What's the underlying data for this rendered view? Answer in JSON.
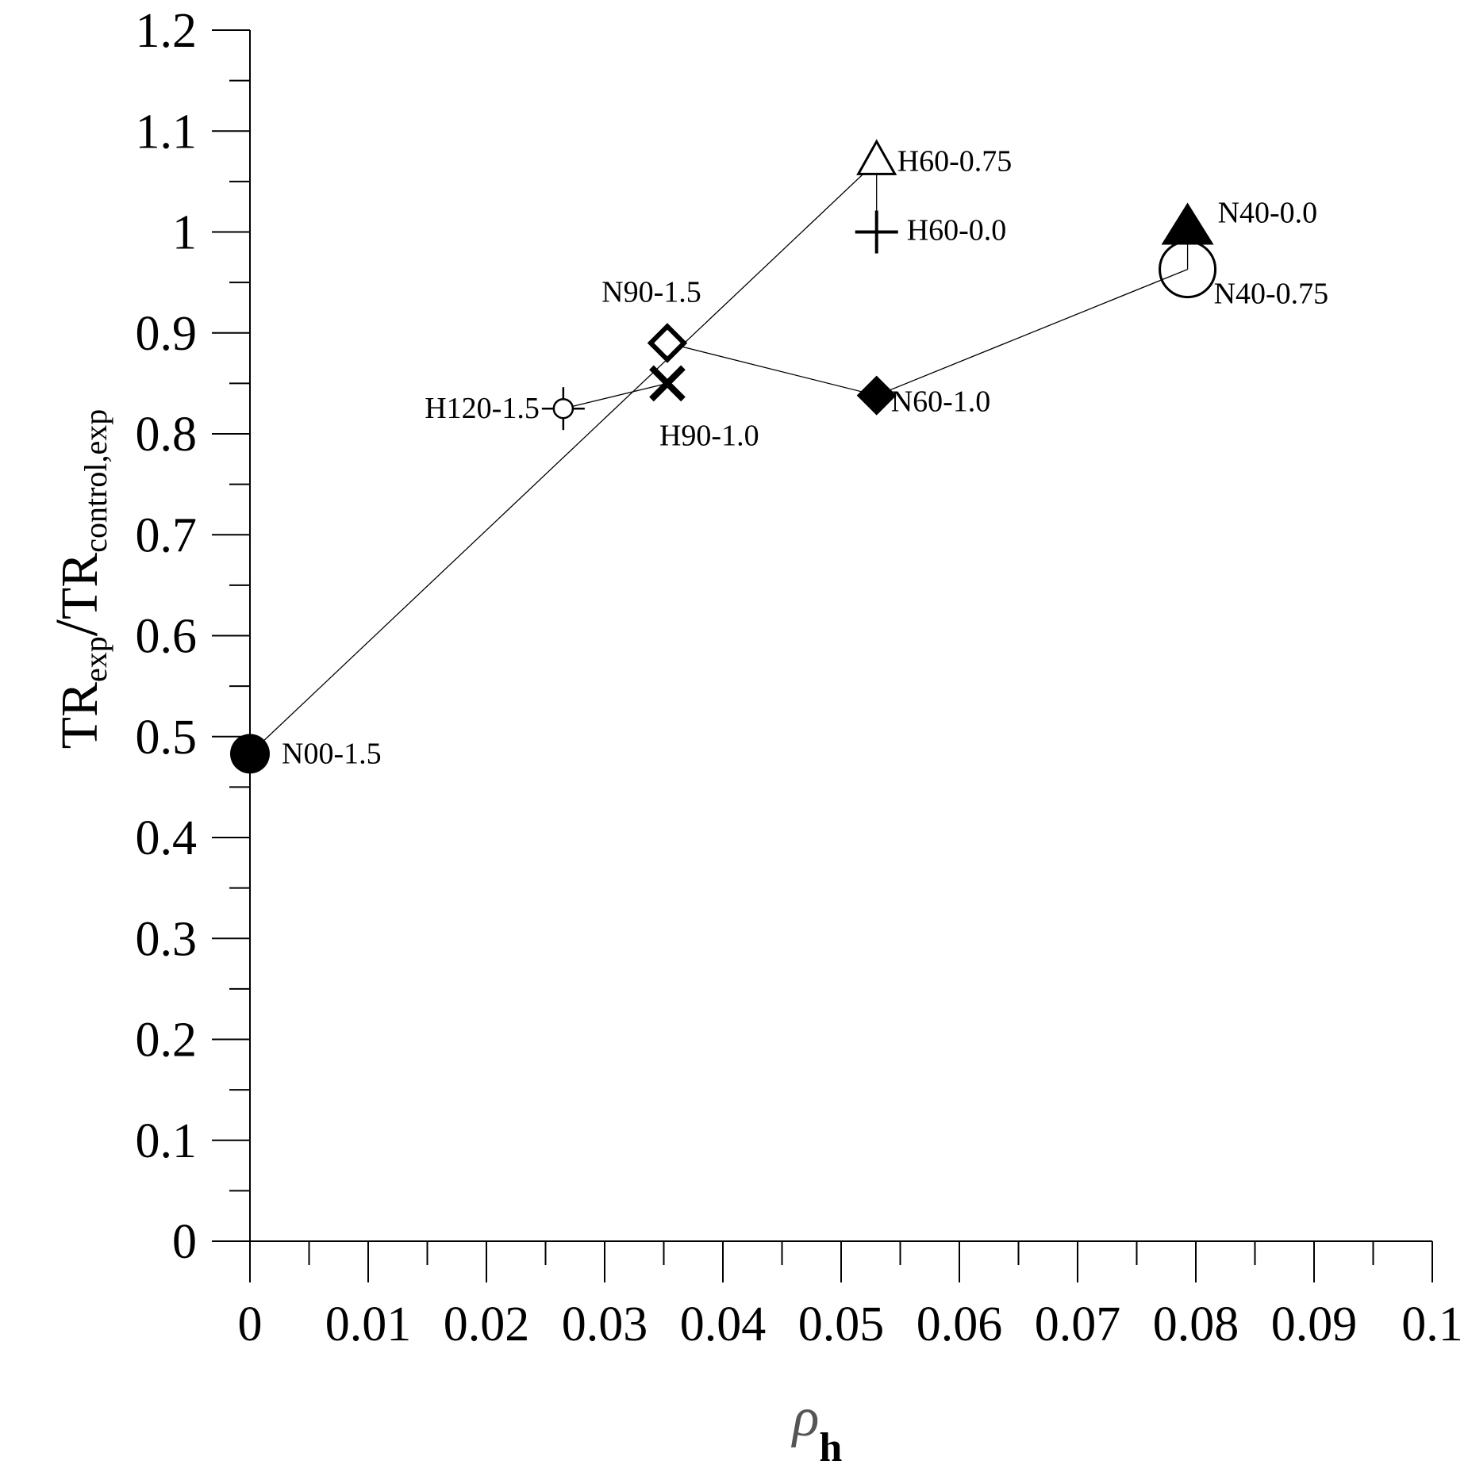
{
  "chart_data": {
    "type": "scatter",
    "title": "",
    "xlabel": {
      "symbol": "ρ",
      "subscript": "h"
    },
    "ylabel": {
      "numerator": "TR",
      "numerator_sub": "exp",
      "slash": "/",
      "denominator": "TR",
      "denominator_sub": "control,exp"
    },
    "xlim": [
      0,
      0.1
    ],
    "ylim": [
      0,
      1.2
    ],
    "xticks": [
      "0",
      "0.01",
      "0.02",
      "0.03",
      "0.04",
      "0.05",
      "0.06",
      "0.07",
      "0.08",
      "0.09",
      "0.1"
    ],
    "yticks": [
      "0",
      "0.1",
      "0.2",
      "0.3",
      "0.4",
      "0.5",
      "0.6",
      "0.7",
      "0.8",
      "0.9",
      "1",
      "1.1",
      "1.2"
    ],
    "grid": false,
    "points": [
      {
        "label": "N00-1.5",
        "x": 0,
        "y": 0.483,
        "marker": "filled-circle"
      },
      {
        "label": "H120-1.5",
        "x": 0.0265,
        "y": 0.825,
        "marker": "circle-cross"
      },
      {
        "label": "N90-1.5",
        "x": 0.0353,
        "y": 0.89,
        "marker": "open-diamond"
      },
      {
        "label": "H90-1.0",
        "x": 0.0353,
        "y": 0.85,
        "marker": "x-cross"
      },
      {
        "label": "H60-0.75",
        "x": 0.053,
        "y": 1.07,
        "marker": "open-triangle"
      },
      {
        "label": "H60-0.0",
        "x": 0.053,
        "y": 1.0,
        "marker": "plus"
      },
      {
        "label": "N60-1.0",
        "x": 0.053,
        "y": 0.838,
        "marker": "filled-diamond"
      },
      {
        "label": "N40-0.0",
        "x": 0.0793,
        "y": 1.0,
        "marker": "filled-triangle"
      },
      {
        "label": "N40-0.75",
        "x": 0.0793,
        "y": 0.963,
        "marker": "open-circle"
      }
    ],
    "lines": [
      {
        "x": [
          0,
          0.053
        ],
        "y": [
          0.483,
          1.07
        ]
      },
      {
        "x": [
          0.053,
          0.053
        ],
        "y": [
          1.07,
          1.0
        ]
      },
      {
        "x": [
          0.0265,
          0.0353
        ],
        "y": [
          0.825,
          0.85
        ]
      },
      {
        "x": [
          0.0353,
          0.053,
          0.0793
        ],
        "y": [
          0.89,
          0.838,
          0.963
        ]
      },
      {
        "x": [
          0.0793,
          0.0793
        ],
        "y": [
          0.963,
          1.0
        ]
      }
    ],
    "colors": {
      "marker": "#000000",
      "line": "#000000",
      "background": "#ffffff"
    }
  }
}
